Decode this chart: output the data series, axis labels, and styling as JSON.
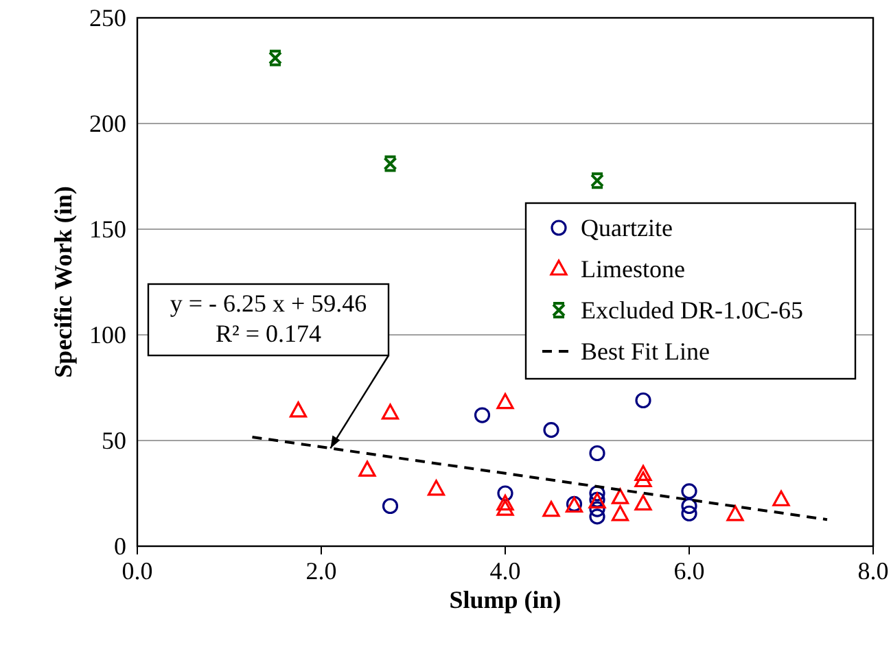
{
  "chart_data": {
    "type": "scatter",
    "xlabel": "Slump (in)",
    "ylabel": "Specific Work (in)",
    "xlim": [
      0,
      8
    ],
    "xticks": [
      {
        "value": 0,
        "label": "0.0"
      },
      {
        "value": 2,
        "label": "2.0"
      },
      {
        "value": 4,
        "label": "4.0"
      },
      {
        "value": 6,
        "label": "6.0"
      },
      {
        "value": 8,
        "label": "8.0"
      }
    ],
    "ylim": [
      0,
      250
    ],
    "yticks": [
      0,
      50,
      100,
      150,
      200,
      250
    ],
    "grid": "y",
    "legend": "right",
    "series": [
      {
        "name": "Quartzite",
        "color": "#000080",
        "marker": "circle",
        "x": [
          2.75,
          3.75,
          4,
          4.5,
          4.75,
          5,
          5,
          5,
          5,
          5,
          5.5,
          6,
          6,
          6
        ],
        "values": [
          19,
          62,
          25,
          55,
          20,
          44,
          25,
          22,
          17.5,
          14,
          69,
          26,
          19,
          15.5
        ]
      },
      {
        "name": "Limestone",
        "color": "#ff0000",
        "marker": "triangle",
        "x": [
          1.75,
          2.5,
          2.75,
          3.25,
          4,
          4,
          4,
          4.5,
          4.75,
          5,
          5.25,
          5.25,
          5.5,
          5.5,
          5.5,
          6.5,
          7
        ],
        "values": [
          64,
          36,
          63,
          27,
          68,
          20,
          17.5,
          17,
          19,
          21,
          23,
          15,
          34,
          31,
          20,
          15,
          22
        ]
      },
      {
        "name": "Excluded DR-1.0C-65",
        "color": "#006400",
        "marker": "cross",
        "x": [
          1.5,
          2.75,
          5
        ],
        "values": [
          231,
          181,
          173
        ]
      },
      {
        "name": "Best Fit Line",
        "type": "line",
        "color": "#000000",
        "line_style": "dashed",
        "marker": "none",
        "x": [
          1.25,
          7.5
        ],
        "values": [
          51.65,
          12.6
        ]
      }
    ],
    "annotations": [
      {
        "text": "y = - 6.25 x + 59.46\nR² = 0.174",
        "x": 2.1,
        "y": 46.3
      }
    ]
  }
}
